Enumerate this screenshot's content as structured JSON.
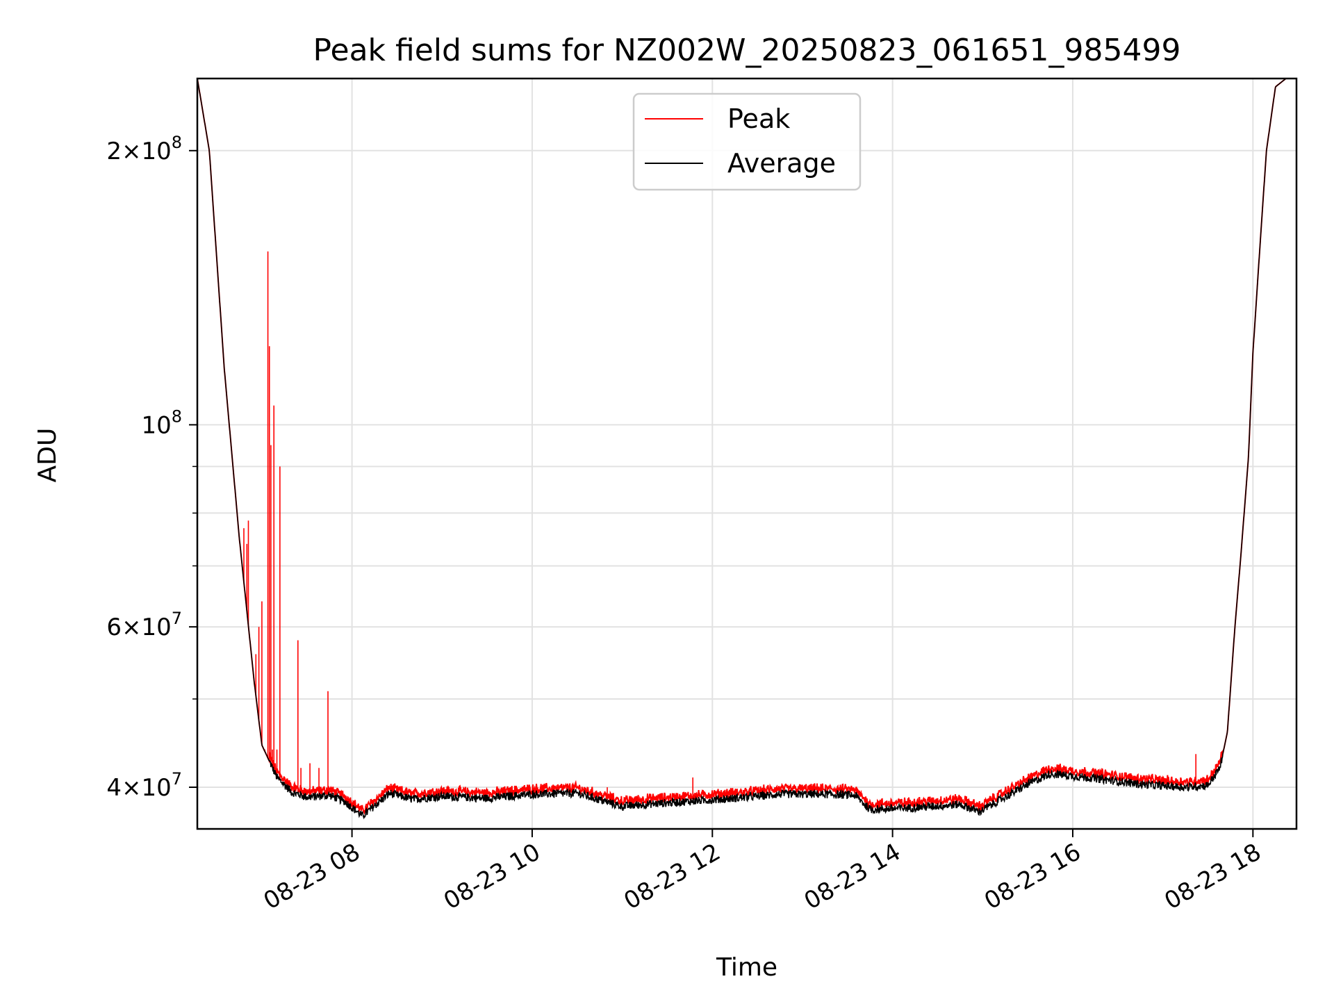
{
  "chart_data": {
    "type": "line",
    "title": "Peak field sums for NZ002W_20250823_061651_985499",
    "xlabel": "Time",
    "ylabel": "ADU",
    "x_axis": {
      "kind": "datetime",
      "range": [
        "2025-08-23T06:17:00",
        "2025-08-23T18:29:00"
      ],
      "tick_values": [
        "2025-08-23T08:00:00",
        "2025-08-23T10:00:00",
        "2025-08-23T12:00:00",
        "2025-08-23T14:00:00",
        "2025-08-23T16:00:00",
        "2025-08-23T18:00:00"
      ],
      "tick_labels": [
        "08-23 08",
        "08-23 10",
        "08-23 12",
        "08-23 14",
        "08-23 16",
        "08-23 18"
      ]
    },
    "y_axis": {
      "scale": "log",
      "range": [
        36000000,
        240000000
      ],
      "tick_values": [
        40000000,
        60000000,
        100000000,
        200000000
      ],
      "tick_labels": [
        {
          "mantissa": "4",
          "exponent": "7"
        },
        {
          "mantissa": "6",
          "exponent": "7"
        },
        {
          "mantissa": "",
          "exponent": "8"
        },
        {
          "mantissa": "2",
          "exponent": "8"
        }
      ],
      "minor_ticks": [
        50000000,
        70000000,
        80000000,
        90000000
      ]
    },
    "grid": true,
    "legend": {
      "placement": "upper center",
      "entries": [
        "Peak",
        "Average"
      ]
    },
    "series": [
      {
        "name": "Average",
        "color": "#000000",
        "role": "baseline",
        "x": [
          "2025-08-23T06:17:00",
          "2025-08-23T06:25:00",
          "2025-08-23T06:35:00",
          "2025-08-23T06:45:00",
          "2025-08-23T06:55:00",
          "2025-08-23T07:00:00",
          "2025-08-23T07:10:00",
          "2025-08-23T07:20:00",
          "2025-08-23T07:30:00",
          "2025-08-23T07:45:00",
          "2025-08-23T07:55:00",
          "2025-08-23T08:07:00",
          "2025-08-23T08:25:00",
          "2025-08-23T08:40:00",
          "2025-08-23T09:00:00",
          "2025-08-23T09:30:00",
          "2025-08-23T10:00:00",
          "2025-08-23T10:30:00",
          "2025-08-23T11:00:00",
          "2025-08-23T11:15:00",
          "2025-08-23T11:45:00",
          "2025-08-23T12:15:00",
          "2025-08-23T12:45:00",
          "2025-08-23T13:15:00",
          "2025-08-23T13:35:00",
          "2025-08-23T13:45:00",
          "2025-08-23T14:15:00",
          "2025-08-23T14:45:00",
          "2025-08-23T14:58:00",
          "2025-08-23T15:10:00",
          "2025-08-23T15:30:00",
          "2025-08-23T15:45:00",
          "2025-08-23T16:15:00",
          "2025-08-23T16:45:00",
          "2025-08-23T17:15:00",
          "2025-08-23T17:30:00",
          "2025-08-23T17:38:00",
          "2025-08-23T17:43:00",
          "2025-08-23T17:48:00",
          "2025-08-23T17:52:00",
          "2025-08-23T17:57:00",
          "2025-08-23T18:00:00",
          "2025-08-23T18:05:00",
          "2025-08-23T18:09:00",
          "2025-08-23T18:15:00",
          "2025-08-23T18:22:00"
        ],
        "values": [
          240000000,
          200000000,
          115000000,
          75000000,
          52000000,
          44500000,
          41000000,
          39500000,
          39000000,
          39200000,
          38600000,
          37200000,
          39400000,
          38800000,
          39100000,
          38900000,
          39300000,
          39400000,
          38100000,
          38300000,
          38600000,
          38900000,
          39300000,
          39300000,
          39200000,
          37800000,
          38000000,
          38300000,
          37600000,
          38600000,
          40300000,
          41400000,
          40900000,
          40300000,
          40000000,
          40200000,
          42000000,
          46000000,
          60000000,
          72000000,
          92000000,
          120000000,
          160000000,
          200000000,
          235000000,
          240000000
        ]
      },
      {
        "name": "Peak",
        "color": "#ff0000",
        "role": "spikes",
        "spikes": [
          {
            "x": "2025-08-23T06:48:00",
            "value": 77000000
          },
          {
            "x": "2025-08-23T06:50:00",
            "value": 74000000
          },
          {
            "x": "2025-08-23T06:51:00",
            "value": 78500000
          },
          {
            "x": "2025-08-23T06:54:00",
            "value": 54000000
          },
          {
            "x": "2025-08-23T06:56:00",
            "value": 56000000
          },
          {
            "x": "2025-08-23T06:58:00",
            "value": 60000000
          },
          {
            "x": "2025-08-23T07:00:00",
            "value": 64000000
          },
          {
            "x": "2025-08-23T07:02:00",
            "value": 44000000
          },
          {
            "x": "2025-08-23T07:04:00",
            "value": 155000000
          },
          {
            "x": "2025-08-23T07:05:00",
            "value": 122000000
          },
          {
            "x": "2025-08-23T07:06:00",
            "value": 95000000
          },
          {
            "x": "2025-08-23T07:07:00",
            "value": 44000000
          },
          {
            "x": "2025-08-23T07:08:00",
            "value": 105000000
          },
          {
            "x": "2025-08-23T07:10:00",
            "value": 44000000
          },
          {
            "x": "2025-08-23T07:12:00",
            "value": 90000000
          },
          {
            "x": "2025-08-23T07:24:00",
            "value": 58000000
          },
          {
            "x": "2025-08-23T07:26:00",
            "value": 42000000
          },
          {
            "x": "2025-08-23T07:32:00",
            "value": 42500000
          },
          {
            "x": "2025-08-23T07:38:00",
            "value": 42000000
          },
          {
            "x": "2025-08-23T07:44:00",
            "value": 51000000
          },
          {
            "x": "2025-08-23T10:50:00",
            "value": 40000000
          },
          {
            "x": "2025-08-23T11:47:00",
            "value": 41000000
          },
          {
            "x": "2025-08-23T17:22:00",
            "value": 43500000
          }
        ]
      }
    ]
  }
}
